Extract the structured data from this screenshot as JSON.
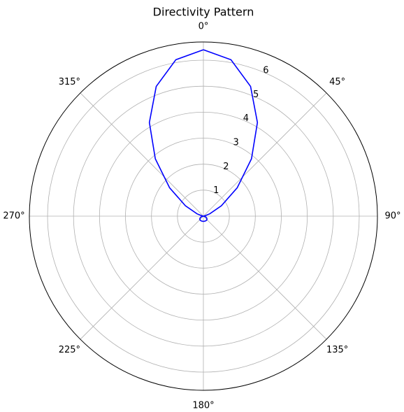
{
  "chart_data": {
    "type": "polar",
    "title": "Directivity Pattern",
    "theta": [
      0,
      10,
      20,
      30,
      40,
      50,
      60,
      70,
      80,
      90,
      100,
      110,
      120,
      130,
      140,
      150,
      160,
      170,
      180,
      190,
      200,
      210,
      220,
      230,
      240,
      250,
      260,
      270,
      280,
      290,
      300,
      310,
      320,
      330,
      340,
      350,
      360
    ],
    "series": [
      {
        "color": "#0000ff",
        "values": [
          6.4,
          6.11,
          5.31,
          4.16,
          2.88,
          1.7,
          0.8,
          0.26,
          0.03,
          0,
          0.03,
          0.1,
          0.15,
          0.18,
          0.2,
          0.2,
          0.2,
          0.2,
          0.2,
          0.2,
          0.2,
          0.2,
          0.2,
          0.18,
          0.15,
          0.1,
          0.03,
          0,
          0.03,
          0.26,
          0.8,
          1.7,
          2.88,
          4.16,
          5.31,
          6.11,
          6.4
        ]
      }
    ],
    "rlim": [
      0,
      6.7
    ],
    "rticks": [
      1,
      2,
      3,
      4,
      5,
      6
    ],
    "thetaticks": [
      {
        "value": 0,
        "label": "0°"
      },
      {
        "value": 45,
        "label": "45°"
      },
      {
        "value": 90,
        "label": "90°"
      },
      {
        "value": 135,
        "label": "135°"
      },
      {
        "value": 180,
        "label": "180°"
      },
      {
        "value": 225,
        "label": "225°"
      },
      {
        "value": 270,
        "label": "270°"
      },
      {
        "value": 315,
        "label": "315°"
      }
    ],
    "grid": true
  }
}
